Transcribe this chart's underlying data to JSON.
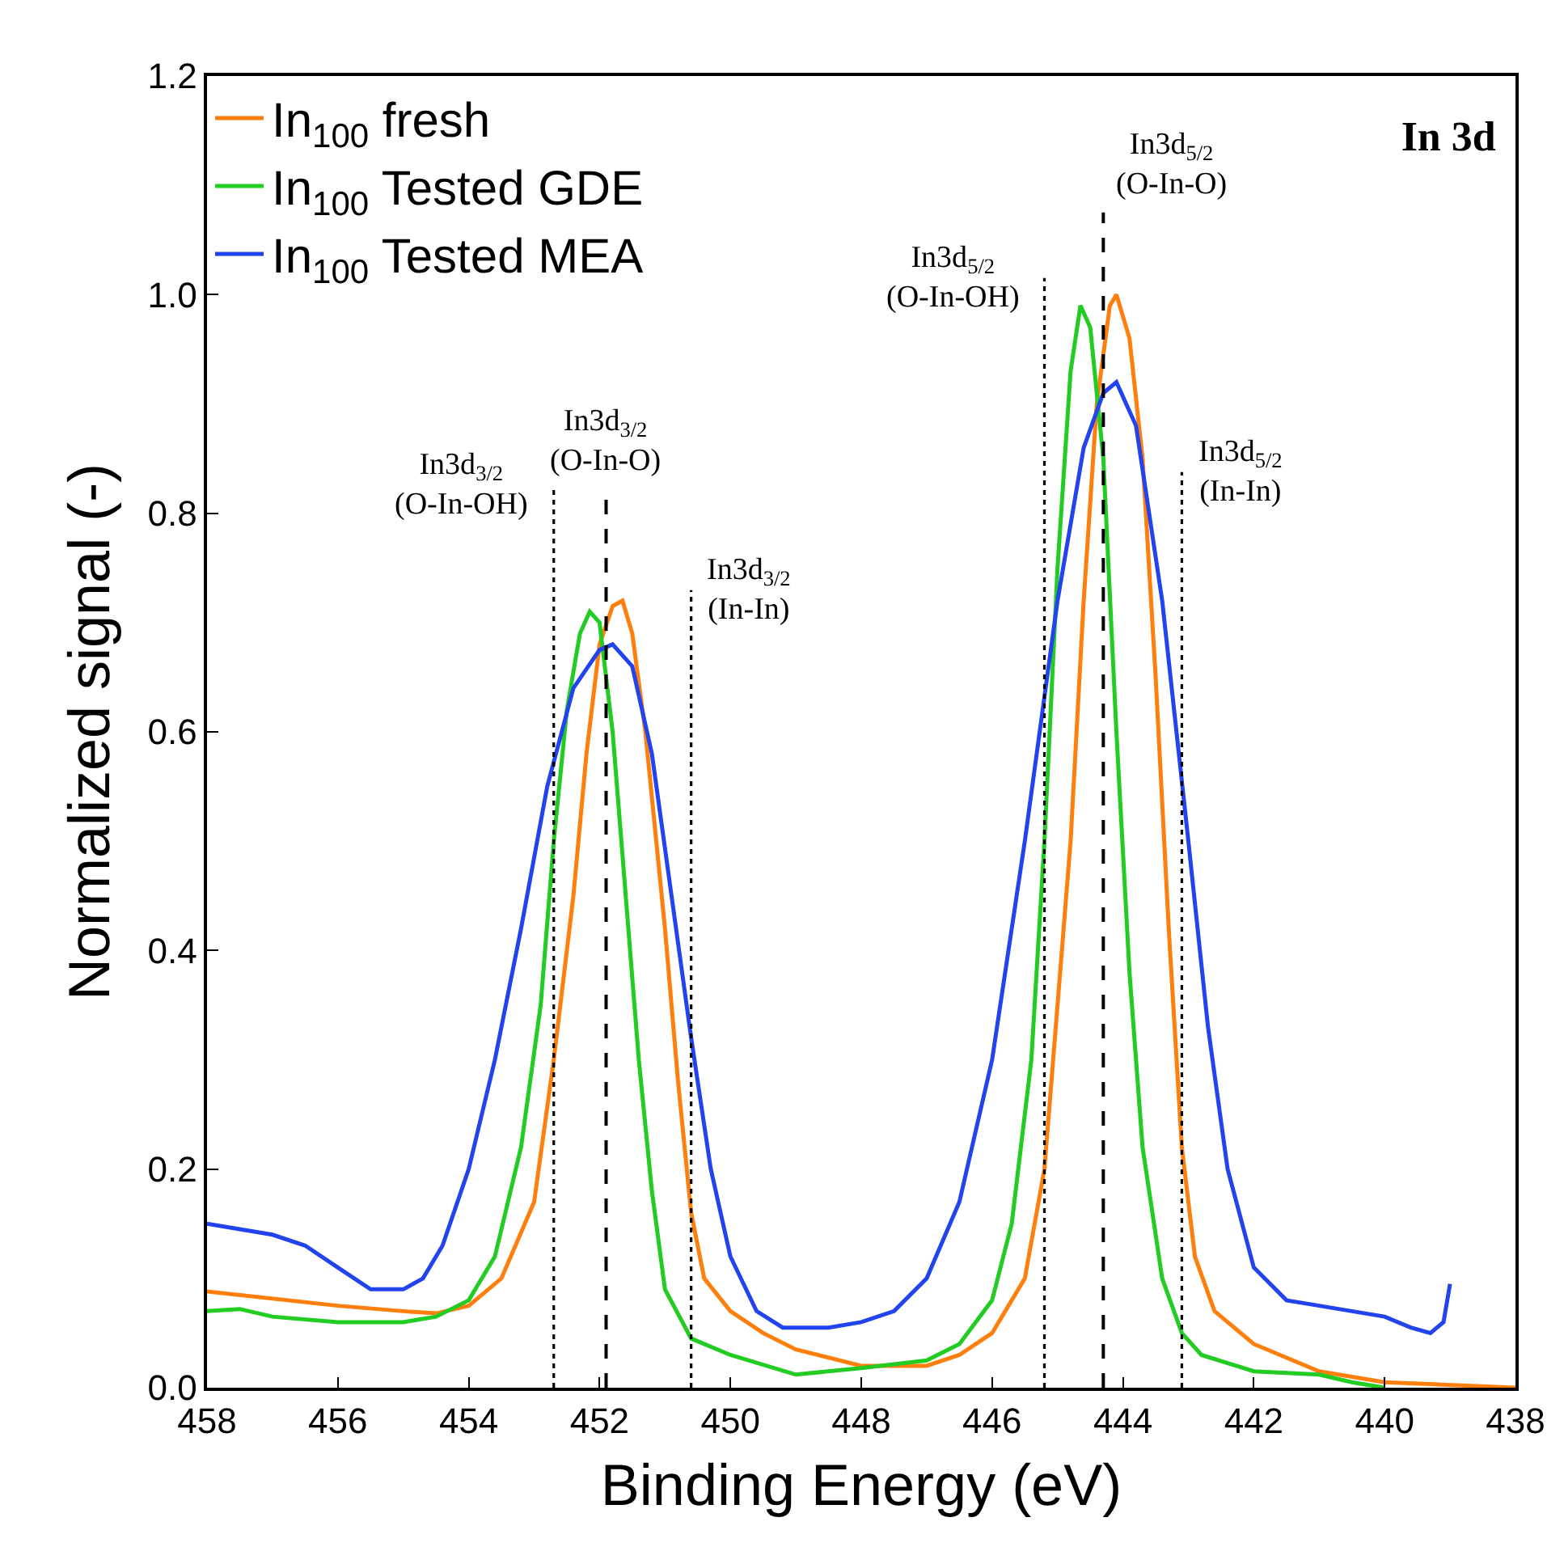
{
  "chart_data": {
    "type": "line",
    "title": "In 3d",
    "xlabel": "Binding Energy (eV)",
    "ylabel": "Normalized signal (-)",
    "xlim": [
      458,
      438
    ],
    "xticks": [
      458,
      456,
      454,
      452,
      450,
      448,
      446,
      444,
      442,
      440,
      438
    ],
    "ylim": [
      0,
      1.2
    ],
    "yticks": [
      {
        "value": 0,
        "label": "0.0"
      },
      0.2,
      0.4,
      0.6,
      0.8,
      {
        "value": 1,
        "label": "1.0"
      },
      1.2
    ],
    "legend": "top left",
    "marker": "none",
    "line_style": "solid",
    "series": [
      {
        "name": "In$_{100}$ fresh",
        "color": "#ff7f0e",
        "x": [
          458,
          456,
          455,
          454.5,
          454,
          453.5,
          453,
          452.7,
          452.4,
          452.2,
          452.0,
          451.8,
          451.65,
          451.5,
          451.3,
          451.0,
          450.8,
          450.6,
          450.4,
          450.0,
          449.5,
          449,
          448,
          447,
          446.5,
          446,
          445.5,
          445.2,
          445.0,
          444.8,
          444.6,
          444.4,
          444.2,
          444.1,
          443.9,
          443.7,
          443.5,
          443.3,
          443.1,
          442.9,
          442.6,
          442,
          441,
          440,
          438
        ],
        "values": [
          0.088,
          0.075,
          0.07,
          0.068,
          0.075,
          0.1,
          0.17,
          0.3,
          0.45,
          0.58,
          0.68,
          0.715,
          0.72,
          0.69,
          0.6,
          0.42,
          0.28,
          0.16,
          0.1,
          0.07,
          0.05,
          0.035,
          0.02,
          0.02,
          0.03,
          0.05,
          0.1,
          0.2,
          0.35,
          0.5,
          0.72,
          0.9,
          0.99,
          1.0,
          0.96,
          0.85,
          0.65,
          0.42,
          0.22,
          0.12,
          0.07,
          0.04,
          0.015,
          0.005,
          0.0
        ]
      },
      {
        "name": "In$_{100}$ Tested GDE",
        "color": "#22cc22",
        "x": [
          458,
          457.5,
          457,
          456,
          455,
          454.5,
          454,
          453.6,
          453.2,
          452.9,
          452.7,
          452.5,
          452.3,
          452.15,
          452.0,
          451.8,
          451.6,
          451.4,
          451.2,
          451.0,
          450.6,
          450,
          449,
          448,
          447,
          446.5,
          446,
          445.7,
          445.4,
          445.2,
          445.0,
          444.8,
          444.65,
          444.5,
          444.3,
          444.1,
          443.9,
          443.7,
          443.4,
          443.1,
          442.8,
          442,
          441,
          440.5,
          440
        ],
        "values": [
          0.07,
          0.072,
          0.065,
          0.06,
          0.06,
          0.065,
          0.08,
          0.12,
          0.22,
          0.35,
          0.5,
          0.62,
          0.69,
          0.71,
          0.7,
          0.6,
          0.45,
          0.3,
          0.18,
          0.09,
          0.045,
          0.03,
          0.012,
          0.018,
          0.025,
          0.04,
          0.08,
          0.15,
          0.3,
          0.5,
          0.75,
          0.93,
          0.99,
          0.97,
          0.85,
          0.6,
          0.38,
          0.22,
          0.1,
          0.05,
          0.03,
          0.015,
          0.012,
          0.005,
          0.0
        ]
      },
      {
        "name": "In$_{100}$ Tested MEA",
        "color": "#2244ee",
        "x": [
          458,
          457.5,
          457,
          456.5,
          456,
          455.5,
          455,
          454.7,
          454.4,
          454.0,
          453.6,
          453.2,
          452.8,
          452.4,
          452.0,
          451.8,
          451.5,
          451.2,
          450.9,
          450.6,
          450.3,
          450.0,
          449.6,
          449.2,
          448.5,
          448,
          447.5,
          447,
          446.5,
          446,
          445.5,
          445.0,
          444.6,
          444.3,
          444.1,
          443.8,
          443.4,
          443.0,
          442.7,
          442.4,
          442.0,
          441.5,
          441,
          440.5,
          440,
          439.6,
          439.3,
          439.1,
          439.0
        ],
        "values": [
          0.15,
          0.145,
          0.14,
          0.13,
          0.11,
          0.09,
          0.09,
          0.1,
          0.13,
          0.2,
          0.3,
          0.42,
          0.55,
          0.64,
          0.675,
          0.68,
          0.66,
          0.58,
          0.45,
          0.32,
          0.2,
          0.12,
          0.07,
          0.055,
          0.055,
          0.06,
          0.07,
          0.1,
          0.17,
          0.3,
          0.5,
          0.72,
          0.86,
          0.91,
          0.92,
          0.88,
          0.72,
          0.5,
          0.33,
          0.2,
          0.11,
          0.08,
          0.075,
          0.07,
          0.065,
          0.055,
          0.05,
          0.06,
          0.095
        ]
      }
    ],
    "ref_lines": [
      {
        "axis": "x",
        "value": 452.7,
        "label": "In3d$_{3/2}$\n(O-In-OH)",
        "color": "#000000",
        "line_style": "dotted"
      },
      {
        "axis": "x",
        "value": 451.9,
        "label": "In3d$_{3/2}$\n(O-In-O)",
        "color": "#000000",
        "line_style": "dashed"
      },
      {
        "axis": "x",
        "value": 450.6,
        "label": "In3d$_{3/2}$\n(In-In)",
        "color": "#000000",
        "line_style": "dotted"
      },
      {
        "axis": "x",
        "value": 445.2,
        "label": "In3d$_{5/2}$\n(O-In-OH)",
        "color": "#000000",
        "line_style": "dotted"
      },
      {
        "axis": "x",
        "value": 444.3,
        "label": "In3d$_{5/2}$\n(O-In-O)",
        "color": "#000000",
        "line_style": "dashed"
      },
      {
        "axis": "x",
        "value": 443.1,
        "label": "In3d$_{5/2}$\n(In-In)",
        "color": "#000000",
        "line_style": "dotted"
      }
    ]
  }
}
